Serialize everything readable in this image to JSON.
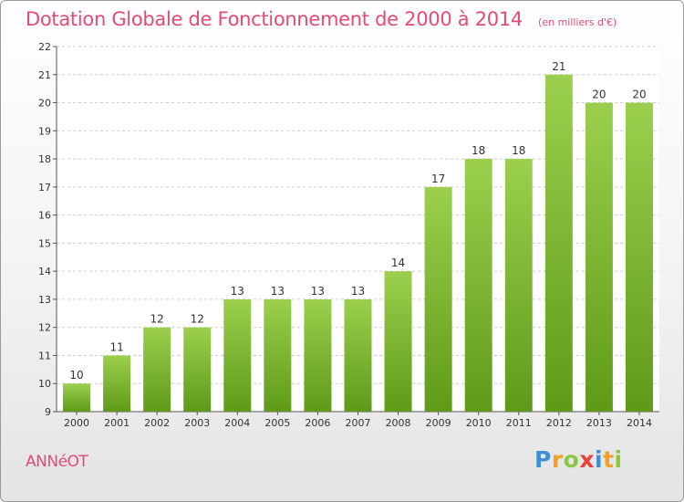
{
  "header": {
    "title": "Dotation Globale de Fonctionnement de 2000 à 2014",
    "subtitle": "(en milliers d'€)"
  },
  "footer": {
    "place": "ANNéOT",
    "logo": "Proxiti"
  },
  "colors": {
    "title": "#e34a76",
    "bar_top": "#9ccf4e",
    "bar_bottom": "#5e9a18",
    "grid": "#cccccc"
  },
  "chart_data": {
    "type": "bar",
    "title": "Dotation Globale de Fonctionnement de 2000 à 2014",
    "subtitle": "(en milliers d'€)",
    "xlabel": "",
    "ylabel": "",
    "categories": [
      "2000",
      "2001",
      "2002",
      "2003",
      "2004",
      "2005",
      "2006",
      "2007",
      "2008",
      "2009",
      "2010",
      "2011",
      "2012",
      "2013",
      "2014"
    ],
    "values": [
      10,
      11,
      12,
      12,
      13,
      13,
      13,
      13,
      14,
      17,
      18,
      18,
      21,
      20,
      20
    ],
    "ylim": [
      9,
      22
    ],
    "yticks": [
      9,
      10,
      11,
      12,
      13,
      14,
      15,
      16,
      17,
      18,
      19,
      20,
      21,
      22
    ],
    "grid": "horizontal dashed",
    "legend": "none"
  }
}
